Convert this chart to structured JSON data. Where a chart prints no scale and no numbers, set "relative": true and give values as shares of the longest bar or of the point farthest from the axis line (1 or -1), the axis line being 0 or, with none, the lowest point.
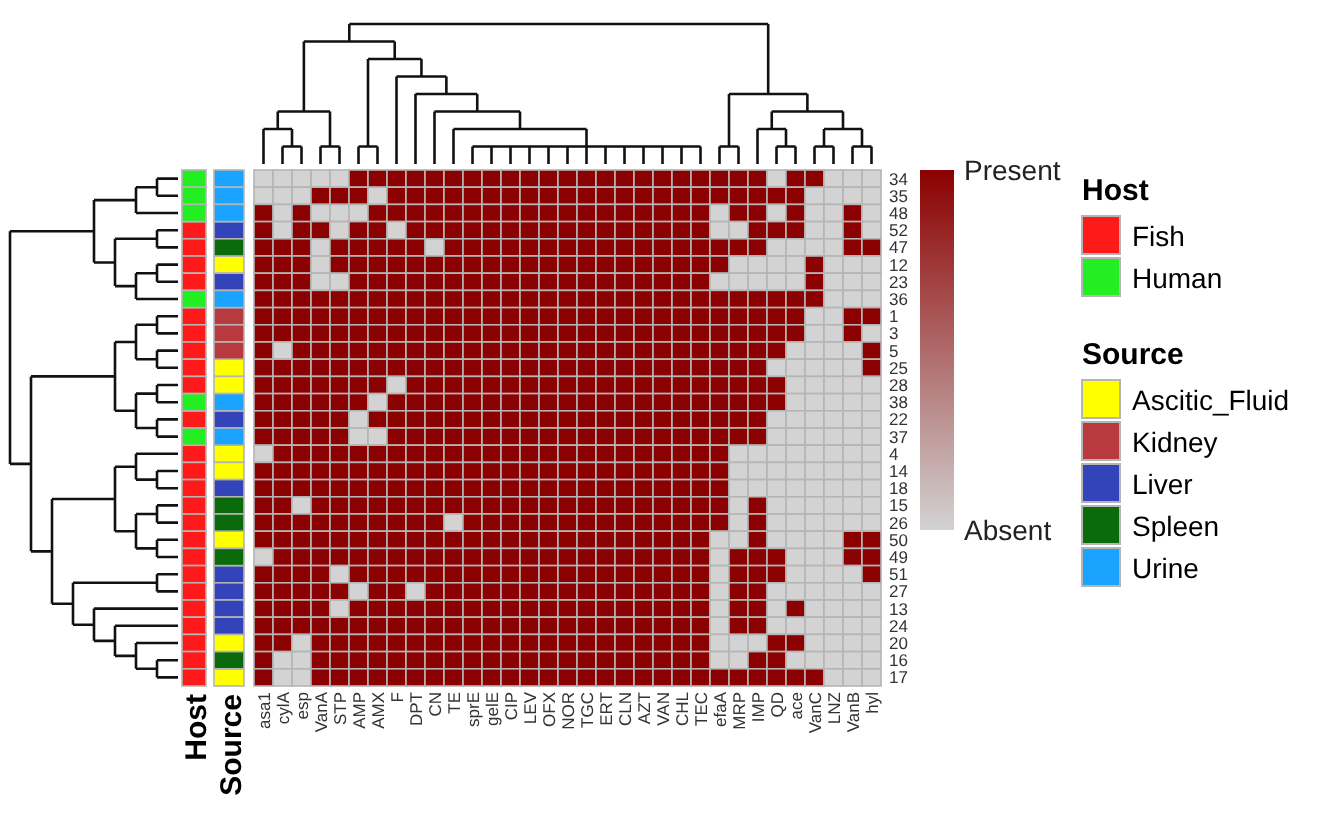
{
  "chart_data": [
    {
      "type": "heatmap",
      "categories": [
        "asa1",
        "cylA",
        "esp",
        "VanA",
        "STP",
        "AMP",
        "AMX",
        "F",
        "DPT",
        "CN",
        "TE",
        "sprE",
        "gelE",
        "CIP",
        "LEV",
        "OFX",
        "NOR",
        "TGC",
        "ERT",
        "CLN",
        "AZT",
        "VAN",
        "CHL",
        "TEC",
        "efaA",
        "MRP",
        "IMP",
        "QD",
        "ace",
        "VanC",
        "LNZ",
        "VanB",
        "hyl"
      ],
      "y_categories": [
        "34",
        "35",
        "48",
        "52",
        "47",
        "12",
        "23",
        "36",
        "1",
        "3",
        "5",
        "25",
        "28",
        "38",
        "22",
        "37",
        "4",
        "14",
        "18",
        "15",
        "26",
        "50",
        "49",
        "51",
        "27",
        "13",
        "24",
        "20",
        "16",
        "17"
      ],
      "cells": [
        [
          0,
          0,
          0,
          0,
          0,
          1,
          1,
          1,
          1,
          1,
          1,
          1,
          1,
          1,
          1,
          1,
          1,
          1,
          1,
          1,
          1,
          1,
          1,
          1,
          1,
          1,
          1,
          0,
          1,
          1,
          0,
          0,
          0
        ],
        [
          0,
          0,
          0,
          1,
          1,
          1,
          0,
          1,
          1,
          1,
          1,
          1,
          1,
          1,
          1,
          1,
          1,
          1,
          1,
          1,
          1,
          1,
          1,
          1,
          1,
          1,
          1,
          1,
          1,
          0,
          0,
          0,
          0
        ],
        [
          1,
          0,
          1,
          0,
          0,
          0,
          1,
          1,
          1,
          1,
          1,
          1,
          1,
          1,
          1,
          1,
          1,
          1,
          1,
          1,
          1,
          1,
          1,
          1,
          0,
          1,
          1,
          0,
          1,
          0,
          0,
          1,
          0
        ],
        [
          1,
          0,
          1,
          1,
          0,
          1,
          1,
          0,
          1,
          1,
          1,
          1,
          1,
          1,
          1,
          1,
          1,
          1,
          1,
          1,
          1,
          1,
          1,
          1,
          0,
          0,
          1,
          1,
          1,
          0,
          0,
          1,
          0
        ],
        [
          1,
          1,
          1,
          0,
          1,
          1,
          1,
          1,
          1,
          0,
          1,
          1,
          1,
          1,
          1,
          1,
          1,
          1,
          1,
          1,
          1,
          1,
          1,
          1,
          1,
          1,
          1,
          0,
          0,
          0,
          0,
          1,
          1
        ],
        [
          1,
          1,
          1,
          0,
          1,
          1,
          1,
          1,
          1,
          1,
          1,
          1,
          1,
          1,
          1,
          1,
          1,
          1,
          1,
          1,
          1,
          1,
          1,
          1,
          1,
          0,
          0,
          0,
          0,
          1,
          0,
          0,
          0
        ],
        [
          1,
          1,
          1,
          0,
          0,
          1,
          1,
          1,
          1,
          1,
          1,
          1,
          1,
          1,
          1,
          1,
          1,
          1,
          1,
          1,
          1,
          1,
          1,
          1,
          0,
          0,
          0,
          0,
          0,
          1,
          0,
          0,
          0
        ],
        [
          1,
          1,
          1,
          1,
          1,
          1,
          1,
          1,
          1,
          1,
          1,
          1,
          1,
          1,
          1,
          1,
          1,
          1,
          1,
          1,
          1,
          1,
          1,
          1,
          1,
          1,
          1,
          1,
          1,
          1,
          0,
          0,
          0
        ],
        [
          1,
          1,
          1,
          1,
          1,
          1,
          1,
          1,
          1,
          1,
          1,
          1,
          1,
          1,
          1,
          1,
          1,
          1,
          1,
          1,
          1,
          1,
          1,
          1,
          1,
          1,
          1,
          1,
          1,
          0,
          0,
          1,
          1
        ],
        [
          1,
          1,
          1,
          1,
          1,
          1,
          1,
          1,
          1,
          1,
          1,
          1,
          1,
          1,
          1,
          1,
          1,
          1,
          1,
          1,
          1,
          1,
          1,
          1,
          1,
          1,
          1,
          1,
          1,
          0,
          0,
          1,
          0
        ],
        [
          1,
          0,
          1,
          1,
          1,
          1,
          1,
          1,
          1,
          1,
          1,
          1,
          1,
          1,
          1,
          1,
          1,
          1,
          1,
          1,
          1,
          1,
          1,
          1,
          1,
          1,
          1,
          1,
          0,
          0,
          0,
          0,
          1
        ],
        [
          1,
          1,
          1,
          1,
          1,
          1,
          1,
          1,
          1,
          1,
          1,
          1,
          1,
          1,
          1,
          1,
          1,
          1,
          1,
          1,
          1,
          1,
          1,
          1,
          1,
          1,
          1,
          0,
          0,
          0,
          0,
          0,
          1
        ],
        [
          1,
          1,
          1,
          1,
          1,
          1,
          1,
          0,
          1,
          1,
          1,
          1,
          1,
          1,
          1,
          1,
          1,
          1,
          1,
          1,
          1,
          1,
          1,
          1,
          1,
          1,
          1,
          1,
          0,
          0,
          0,
          0,
          0
        ],
        [
          1,
          1,
          1,
          1,
          1,
          1,
          0,
          1,
          1,
          1,
          1,
          1,
          1,
          1,
          1,
          1,
          1,
          1,
          1,
          1,
          1,
          1,
          1,
          1,
          1,
          1,
          1,
          1,
          0,
          0,
          0,
          0,
          0
        ],
        [
          1,
          1,
          1,
          1,
          1,
          0,
          1,
          1,
          1,
          1,
          1,
          1,
          1,
          1,
          1,
          1,
          1,
          1,
          1,
          1,
          1,
          1,
          1,
          1,
          1,
          1,
          1,
          0,
          0,
          0,
          0,
          0,
          0
        ],
        [
          1,
          1,
          1,
          1,
          1,
          0,
          0,
          1,
          1,
          1,
          1,
          1,
          1,
          1,
          1,
          1,
          1,
          1,
          1,
          1,
          1,
          1,
          1,
          1,
          1,
          1,
          1,
          0,
          0,
          0,
          0,
          0,
          0
        ],
        [
          0,
          1,
          1,
          1,
          1,
          1,
          1,
          1,
          1,
          1,
          1,
          1,
          1,
          1,
          1,
          1,
          1,
          1,
          1,
          1,
          1,
          1,
          1,
          1,
          1,
          0,
          0,
          0,
          0,
          0,
          0,
          0,
          0
        ],
        [
          1,
          1,
          1,
          1,
          1,
          1,
          1,
          1,
          1,
          1,
          1,
          1,
          1,
          1,
          1,
          1,
          1,
          1,
          1,
          1,
          1,
          1,
          1,
          1,
          1,
          0,
          0,
          0,
          0,
          0,
          0,
          0,
          0
        ],
        [
          1,
          1,
          1,
          1,
          1,
          1,
          1,
          1,
          1,
          1,
          1,
          1,
          1,
          1,
          1,
          1,
          1,
          1,
          1,
          1,
          1,
          1,
          1,
          1,
          1,
          0,
          0,
          0,
          0,
          0,
          0,
          0,
          0
        ],
        [
          1,
          1,
          0,
          1,
          1,
          1,
          1,
          1,
          1,
          1,
          1,
          1,
          1,
          1,
          1,
          1,
          1,
          1,
          1,
          1,
          1,
          1,
          1,
          1,
          1,
          0,
          1,
          0,
          0,
          0,
          0,
          0,
          0
        ],
        [
          1,
          1,
          1,
          1,
          1,
          1,
          1,
          1,
          1,
          1,
          0,
          1,
          1,
          1,
          1,
          1,
          1,
          1,
          1,
          1,
          1,
          1,
          1,
          1,
          1,
          0,
          1,
          0,
          0,
          0,
          0,
          0,
          0
        ],
        [
          1,
          1,
          1,
          1,
          1,
          1,
          1,
          1,
          1,
          1,
          1,
          1,
          1,
          1,
          1,
          1,
          1,
          1,
          1,
          1,
          1,
          1,
          1,
          1,
          0,
          0,
          1,
          0,
          0,
          0,
          0,
          1,
          1
        ],
        [
          0,
          1,
          1,
          1,
          1,
          1,
          1,
          1,
          1,
          1,
          1,
          1,
          1,
          1,
          1,
          1,
          1,
          1,
          1,
          1,
          1,
          1,
          1,
          1,
          0,
          1,
          1,
          1,
          0,
          0,
          0,
          1,
          1
        ],
        [
          1,
          1,
          1,
          1,
          0,
          1,
          1,
          1,
          1,
          1,
          1,
          1,
          1,
          1,
          1,
          1,
          1,
          1,
          1,
          1,
          1,
          1,
          1,
          1,
          0,
          1,
          1,
          1,
          0,
          0,
          0,
          0,
          1
        ],
        [
          1,
          1,
          1,
          1,
          1,
          0,
          1,
          1,
          0,
          1,
          1,
          1,
          1,
          1,
          1,
          1,
          1,
          1,
          1,
          1,
          1,
          1,
          1,
          1,
          0,
          1,
          1,
          0,
          0,
          0,
          0,
          0,
          0
        ],
        [
          1,
          1,
          1,
          1,
          0,
          1,
          1,
          1,
          1,
          1,
          1,
          1,
          1,
          1,
          1,
          1,
          1,
          1,
          1,
          1,
          1,
          1,
          1,
          1,
          0,
          1,
          1,
          0,
          1,
          0,
          0,
          0,
          0
        ],
        [
          1,
          1,
          1,
          1,
          1,
          1,
          1,
          1,
          1,
          1,
          1,
          1,
          1,
          1,
          1,
          1,
          1,
          1,
          1,
          1,
          1,
          1,
          1,
          1,
          0,
          1,
          1,
          0,
          0,
          0,
          0,
          0,
          0
        ],
        [
          1,
          1,
          0,
          1,
          1,
          1,
          1,
          1,
          1,
          1,
          1,
          1,
          1,
          1,
          1,
          1,
          1,
          1,
          1,
          1,
          1,
          1,
          1,
          1,
          0,
          0,
          0,
          1,
          1,
          0,
          0,
          0,
          0
        ],
        [
          1,
          0,
          0,
          1,
          1,
          1,
          1,
          1,
          1,
          1,
          1,
          1,
          1,
          1,
          1,
          1,
          1,
          1,
          1,
          1,
          1,
          1,
          1,
          1,
          0,
          0,
          1,
          1,
          0,
          0,
          0,
          0,
          0
        ],
        [
          1,
          0,
          0,
          1,
          1,
          1,
          1,
          1,
          1,
          1,
          1,
          1,
          1,
          1,
          1,
          1,
          1,
          1,
          1,
          1,
          1,
          1,
          1,
          1,
          1,
          1,
          1,
          1,
          1,
          1,
          0,
          0,
          0
        ]
      ],
      "clim": [
        0,
        1
      ],
      "cticks": [
        {
          "value": 1,
          "label": "Present"
        },
        {
          "value": 0,
          "label": "Absent"
        }
      ],
      "color": "#8b0000"
    },
    {
      "type": "bar",
      "orientation": "horizontal",
      "stacked": true,
      "relative": true,
      "ylabel": "Host",
      "legend": "right",
      "legend_title": "Host",
      "categories": [
        null,
        null,
        null,
        null,
        null,
        null,
        null,
        null,
        null,
        null,
        null,
        null,
        null,
        null,
        null,
        null,
        null,
        null,
        null,
        null,
        null,
        null,
        null,
        null,
        null,
        null,
        null,
        null,
        null,
        null
      ],
      "series": [
        {
          "name": "Fish",
          "color": "#ff1a1a",
          "values": [
            null,
            null,
            null,
            1,
            1,
            1,
            1,
            null,
            1,
            1,
            1,
            1,
            1,
            null,
            1,
            null,
            1,
            1,
            1,
            1,
            1,
            1,
            1,
            1,
            1,
            1,
            1,
            1,
            1,
            1
          ]
        },
        {
          "name": "Human",
          "color": "#22ee22",
          "values": [
            1,
            1,
            1,
            null,
            null,
            null,
            null,
            1,
            null,
            null,
            null,
            null,
            null,
            1,
            null,
            1,
            null,
            null,
            null,
            null,
            null,
            null,
            null,
            null,
            null,
            null,
            null,
            null,
            null,
            null
          ]
        }
      ]
    },
    {
      "type": "bar",
      "orientation": "horizontal",
      "stacked": true,
      "relative": true,
      "ylabel": "Source",
      "legend": "right",
      "legend_title": "Source",
      "categories": [
        null,
        null,
        null,
        null,
        null,
        null,
        null,
        null,
        null,
        null,
        null,
        null,
        null,
        null,
        null,
        null,
        null,
        null,
        null,
        null,
        null,
        null,
        null,
        null,
        null,
        null,
        null,
        null,
        null,
        null
      ],
      "series": [
        {
          "name": "Ascitic_Fluid",
          "color": "#ffff00",
          "values": [
            null,
            null,
            null,
            null,
            null,
            1,
            null,
            null,
            null,
            null,
            null,
            1,
            1,
            null,
            null,
            null,
            1,
            1,
            null,
            null,
            null,
            1,
            null,
            null,
            null,
            null,
            null,
            1,
            null,
            1
          ]
        },
        {
          "name": "Kidney",
          "color": "#b83a3e",
          "values": [
            null,
            null,
            null,
            null,
            null,
            null,
            null,
            null,
            1,
            1,
            1,
            null,
            null,
            null,
            null,
            null,
            null,
            null,
            null,
            null,
            null,
            null,
            null,
            null,
            null,
            null,
            null,
            null,
            null,
            null
          ]
        },
        {
          "name": "Liver",
          "color": "#3344bb",
          "values": [
            null,
            null,
            null,
            1,
            null,
            null,
            1,
            null,
            null,
            null,
            null,
            null,
            null,
            null,
            1,
            null,
            null,
            null,
            1,
            null,
            null,
            null,
            null,
            1,
            1,
            1,
            1,
            null,
            null,
            null
          ]
        },
        {
          "name": "Spleen",
          "color": "#0b6a0b",
          "values": [
            null,
            null,
            null,
            null,
            1,
            null,
            null,
            null,
            null,
            null,
            null,
            null,
            null,
            null,
            null,
            null,
            null,
            null,
            null,
            1,
            1,
            null,
            1,
            null,
            null,
            null,
            null,
            null,
            1,
            null
          ]
        },
        {
          "name": "Urine",
          "color": "#1aa3ff",
          "values": [
            1,
            1,
            1,
            null,
            null,
            null,
            null,
            1,
            null,
            null,
            null,
            null,
            null,
            1,
            null,
            1,
            null,
            null,
            null,
            null,
            null,
            null,
            null,
            null,
            null,
            null,
            null,
            null,
            null,
            null
          ]
        }
      ]
    }
  ]
}
